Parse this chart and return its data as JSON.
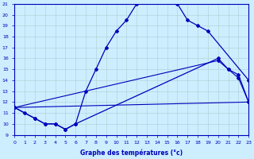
{
  "xlabel": "Graphe des températures (°c)",
  "background_color": "#cceeff",
  "line_color": "#0000bb",
  "xmin": 0,
  "xmax": 23,
  "ymin": 9,
  "ymax": 21,
  "grid_color": "#aacccc",
  "tick_color": "#0000bb",
  "label_color": "#0000bb",
  "curve1_x": [
    0,
    1,
    2,
    3,
    4,
    5,
    6,
    7,
    8,
    9,
    10,
    11,
    12,
    13,
    14,
    15,
    16,
    17,
    18,
    19,
    23
  ],
  "curve1_y": [
    11.5,
    11.0,
    10.5,
    10.0,
    10.0,
    9.5,
    10.0,
    13.0,
    15.0,
    17.0,
    18.5,
    19.5,
    21.0,
    21.3,
    21.2,
    21.2,
    21.0,
    19.5,
    19.0,
    18.5,
    14.0
  ],
  "curve2_x": [
    0,
    2,
    3,
    4,
    5,
    6,
    20,
    21,
    22,
    23
  ],
  "curve2_y": [
    11.5,
    10.5,
    10.0,
    10.0,
    9.5,
    10.0,
    16.0,
    15.0,
    14.5,
    12.0
  ],
  "curve3_x": [
    0,
    23
  ],
  "curve3_y": [
    11.5,
    12.0
  ],
  "curve4_x": [
    0,
    20,
    21,
    22,
    23
  ],
  "curve4_y": [
    11.5,
    15.8,
    15.0,
    14.2,
    12.0
  ]
}
